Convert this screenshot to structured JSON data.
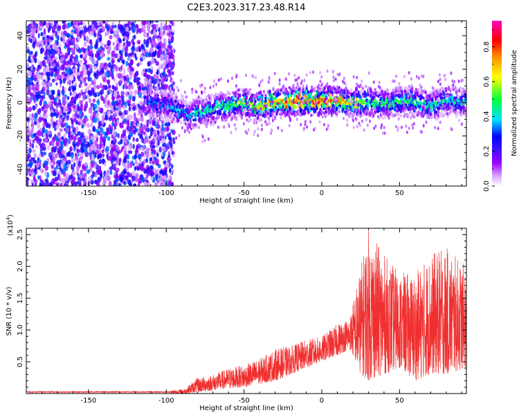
{
  "title": "C2E3.2023.317.23.48.R14",
  "chart_data": [
    {
      "type": "heatmap",
      "xlabel": "Height of straight line (km)",
      "ylabel": "Frequency (Hz)",
      "xlim": [
        -190,
        93
      ],
      "ylim": [
        -50,
        49
      ],
      "xticks": [
        -150,
        -100,
        -50,
        0,
        50
      ],
      "yticks": [
        -40,
        -20,
        0,
        20,
        40
      ],
      "noise_region": {
        "x_range": [
          -190,
          -95
        ],
        "y_range": [
          -50,
          49
        ],
        "amplitude_range": [
          0.05,
          0.35
        ]
      },
      "ridge_center": [
        {
          "x": -110,
          "y": 0
        },
        {
          "x": -100,
          "y": -2
        },
        {
          "x": -90,
          "y": -5
        },
        {
          "x": -85,
          "y": -9
        },
        {
          "x": -80,
          "y": -6
        },
        {
          "x": -70,
          "y": -4
        },
        {
          "x": -60,
          "y": -2
        },
        {
          "x": -50,
          "y": 0
        },
        {
          "x": -40,
          "y": -2
        },
        {
          "x": -30,
          "y": 0
        },
        {
          "x": -20,
          "y": 1
        },
        {
          "x": -10,
          "y": 1
        },
        {
          "x": 0,
          "y": 1
        },
        {
          "x": 10,
          "y": 1
        },
        {
          "x": 20,
          "y": 0
        },
        {
          "x": 30,
          "y": 0
        },
        {
          "x": 40,
          "y": -1
        },
        {
          "x": 50,
          "y": 0
        },
        {
          "x": 60,
          "y": 0
        },
        {
          "x": 70,
          "y": -2
        },
        {
          "x": 80,
          "y": 1
        },
        {
          "x": 93,
          "y": 0
        }
      ],
      "ridge_peak_amplitude": [
        {
          "x": -110,
          "y": 0.35
        },
        {
          "x": -80,
          "y": 0.45
        },
        {
          "x": -50,
          "y": 0.6
        },
        {
          "x": -20,
          "y": 0.9
        },
        {
          "x": 15,
          "y": 0.8
        },
        {
          "x": 30,
          "y": 0.55
        },
        {
          "x": 60,
          "y": 0.5
        },
        {
          "x": 93,
          "y": 0.45
        }
      ],
      "colorbar": {
        "label": "Normalized spectral amplitude",
        "range": [
          0.0,
          0.95
        ],
        "ticks": [
          0.0,
          0.2,
          0.4,
          0.6,
          0.8
        ],
        "tick_labels": [
          "0.0",
          "0.2",
          "0.4",
          "0.6",
          "0.8"
        ],
        "colors": [
          "#ffffff",
          "#d8a8ff",
          "#9a00ff",
          "#4010ff",
          "#0000ff",
          "#00e0ff",
          "#00ff40",
          "#ffff00",
          "#ff9000",
          "#ff0000",
          "#ff00c0"
        ]
      }
    },
    {
      "type": "line",
      "xlabel": "Height of straight line (km)",
      "ylabel": "SNR (10 * v/v)",
      "y_multiplier_label": "(x10",
      "y_multiplier_exp": "4",
      "y_multiplier_close": ")",
      "xlim": [
        -190,
        93
      ],
      "ylim": [
        0,
        2.6
      ],
      "xticks": [
        -150,
        -100,
        -50,
        0,
        50
      ],
      "yticks": [
        0.5,
        1.0,
        1.5,
        2.0,
        2.5
      ],
      "ytick_labels": [
        "0.5",
        "1.0",
        "1.5",
        "2.0",
        "2.5"
      ],
      "series": [
        {
          "color": "#f03030",
          "envelope": [
            {
              "x": -190,
              "low": 0.0,
              "high": 0.04
            },
            {
              "x": -100,
              "low": 0.0,
              "high": 0.04
            },
            {
              "x": -88,
              "low": 0.0,
              "high": 0.08
            },
            {
              "x": -80,
              "low": 0.02,
              "high": 0.25
            },
            {
              "x": -70,
              "low": 0.05,
              "high": 0.3
            },
            {
              "x": -60,
              "low": 0.08,
              "high": 0.4
            },
            {
              "x": -50,
              "low": 0.1,
              "high": 0.45
            },
            {
              "x": -40,
              "low": 0.15,
              "high": 0.55
            },
            {
              "x": -30,
              "low": 0.2,
              "high": 0.7
            },
            {
              "x": -20,
              "low": 0.3,
              "high": 0.75
            },
            {
              "x": -10,
              "low": 0.4,
              "high": 0.85
            },
            {
              "x": 0,
              "low": 0.5,
              "high": 0.9
            },
            {
              "x": 10,
              "low": 0.6,
              "high": 1.1
            },
            {
              "x": 18,
              "low": 0.7,
              "high": 1.2
            },
            {
              "x": 25,
              "low": 0.3,
              "high": 2.0
            },
            {
              "x": 30,
              "low": 0.2,
              "high": 2.6
            },
            {
              "x": 40,
              "low": 0.3,
              "high": 2.2
            },
            {
              "x": 50,
              "low": 0.4,
              "high": 1.9
            },
            {
              "x": 60,
              "low": 0.2,
              "high": 1.9
            },
            {
              "x": 70,
              "low": 0.3,
              "high": 2.2
            },
            {
              "x": 80,
              "low": 0.3,
              "high": 2.3
            },
            {
              "x": 93,
              "low": 0.4,
              "high": 2.0
            }
          ]
        }
      ]
    }
  ]
}
